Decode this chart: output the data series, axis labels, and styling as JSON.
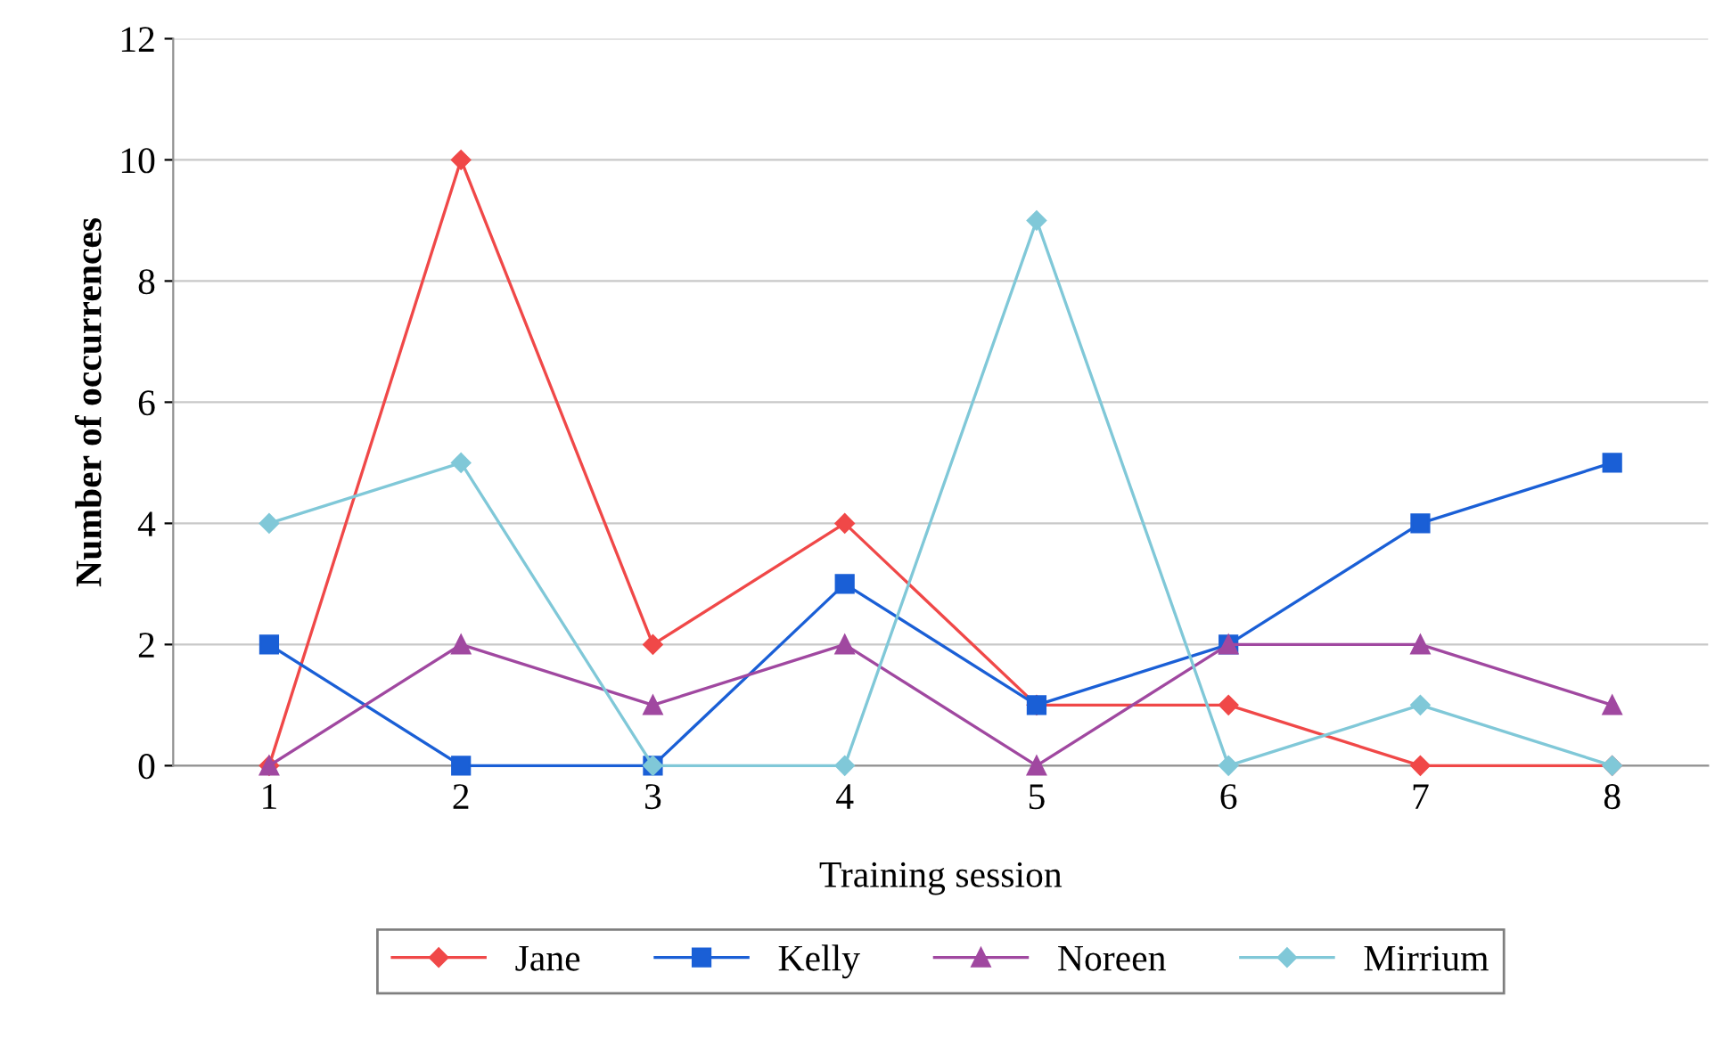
{
  "chart_data": {
    "type": "line",
    "xlabel": "Training session",
    "ylabel": "Number of occurrences",
    "x": [
      1,
      2,
      3,
      4,
      5,
      6,
      7,
      8
    ],
    "series": [
      {
        "name": "Jane",
        "color": "#f04848",
        "marker": "diamond",
        "values": [
          0,
          10,
          2,
          4,
          1,
          1,
          0,
          0
        ]
      },
      {
        "name": "Kelly",
        "color": "#1a5fd6",
        "marker": "square",
        "values": [
          2,
          0,
          0,
          3,
          1,
          2,
          4,
          5
        ]
      },
      {
        "name": "Noreen",
        "color": "#a048a0",
        "marker": "triangle",
        "values": [
          0,
          2,
          1,
          2,
          0,
          2,
          2,
          1
        ]
      },
      {
        "name": "Mirrium",
        "color": "#80c8d8",
        "marker": "diamond",
        "values": [
          4,
          5,
          0,
          0,
          9,
          0,
          1,
          0
        ]
      }
    ],
    "xlim": [
      0.5,
      8.5
    ],
    "xticks": [
      1,
      2,
      3,
      4,
      5,
      6,
      7,
      8
    ],
    "ylim": [
      0,
      12
    ],
    "yticks": [
      0,
      2,
      4,
      6,
      8,
      10,
      12
    ],
    "grid": "y",
    "legend": "bottom",
    "line_style": "solid"
  }
}
